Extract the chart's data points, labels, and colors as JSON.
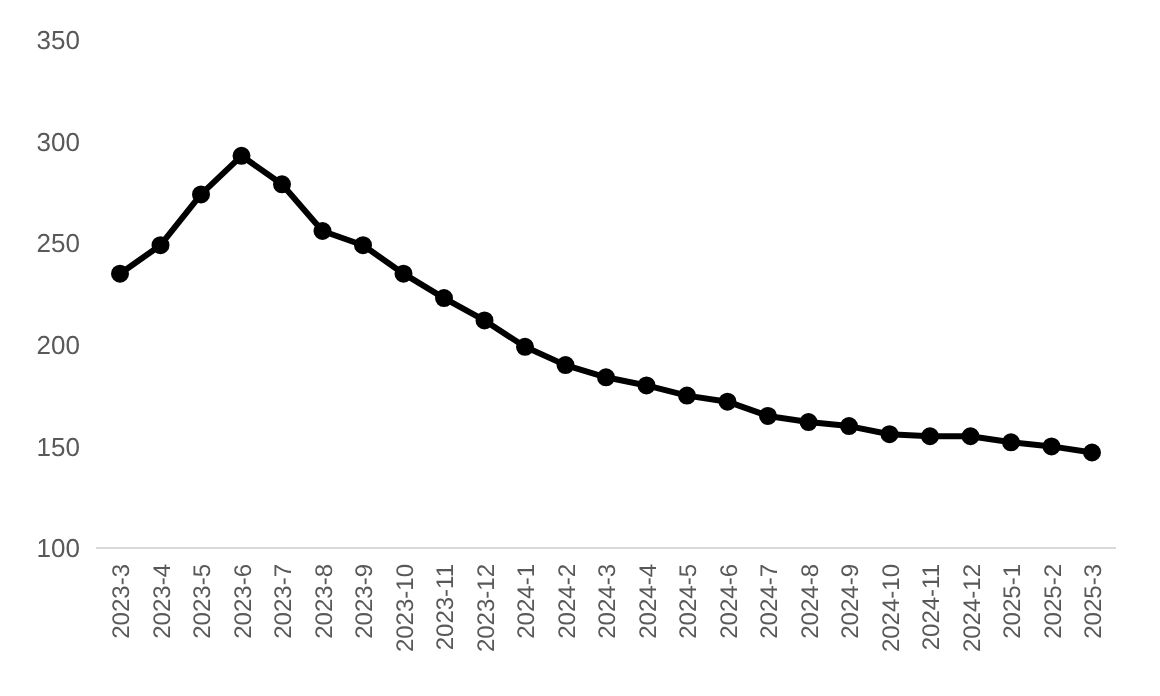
{
  "chart_data": {
    "type": "line",
    "categories": [
      "2023-3",
      "2023-4",
      "2023-5",
      "2023-6",
      "2023-7",
      "2023-8",
      "2023-9",
      "2023-10",
      "2023-11",
      "2023-12",
      "2024-1",
      "2024-2",
      "2024-3",
      "2024-4",
      "2024-5",
      "2024-6",
      "2024-7",
      "2024-8",
      "2024-9",
      "2024-10",
      "2024-11",
      "2024-12",
      "2025-1",
      "2025-2",
      "2025-3"
    ],
    "series": [
      {
        "color": "#000000",
        "values": [
          235,
          249,
          274,
          293,
          279,
          256,
          249,
          235,
          223,
          212,
          199,
          190,
          184,
          180,
          175,
          172,
          165,
          162,
          160,
          156,
          155,
          155,
          152,
          150,
          147
        ]
      }
    ],
    "ylim": [
      100,
      350
    ],
    "yticks": [
      100,
      150,
      200,
      250,
      300,
      350
    ],
    "grid": false,
    "legend": false,
    "marker": "circle",
    "line_style": "solid"
  }
}
